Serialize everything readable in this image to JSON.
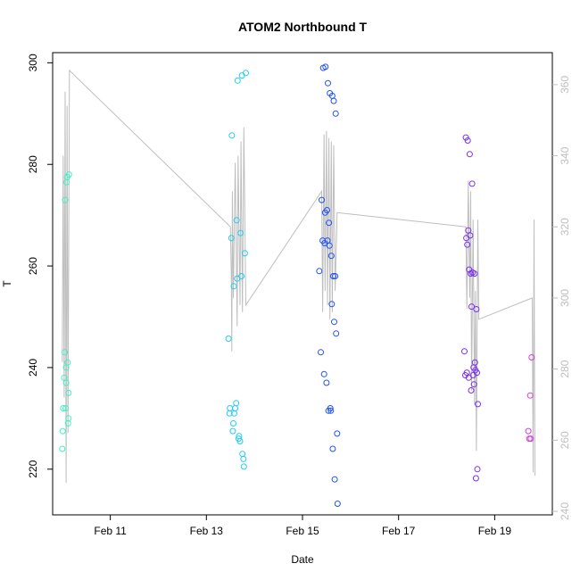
{
  "chart_data": {
    "type": "scatter",
    "title": "ATOM2 Northbound T",
    "xlabel": "Date",
    "ylabel": "T",
    "x_ticks": [
      "Feb 11",
      "Feb 13",
      "Feb 15",
      "Feb 17",
      "Feb 19"
    ],
    "x_tick_values": [
      11,
      13,
      15,
      17,
      19
    ],
    "xlim": [
      9.8,
      20.2
    ],
    "y_ticks": [
      220,
      240,
      260,
      280,
      300
    ],
    "ylim": [
      211,
      302
    ],
    "y2_ticks": [
      260,
      280,
      300,
      320,
      340,
      360
    ],
    "y2_low_tick": 240,
    "y2lim": [
      239,
      369
    ],
    "grid": false,
    "colors": {
      "axis": "#000000",
      "right_axis": "#bebebe",
      "line": "#bebebe"
    },
    "series": [
      {
        "color": "#3ef2c6",
        "points": [
          [
            10.0,
            224
          ],
          [
            10.01,
            227.5
          ],
          [
            10.02,
            232
          ],
          [
            10.04,
            238
          ],
          [
            10.05,
            243
          ],
          [
            10.06,
            273
          ],
          [
            10.07,
            232
          ],
          [
            10.08,
            237
          ],
          [
            10.08,
            240
          ],
          [
            10.09,
            276.5
          ],
          [
            10.1,
            277.5
          ],
          [
            10.11,
            241
          ],
          [
            10.12,
            229
          ],
          [
            10.13,
            230
          ],
          [
            10.13,
            235
          ],
          [
            10.14,
            278
          ]
        ]
      },
      {
        "color": "#22ccf2",
        "points": [
          [
            13.46,
            245.7
          ],
          [
            13.48,
            231
          ],
          [
            13.49,
            232
          ],
          [
            13.52,
            265.5
          ],
          [
            13.53,
            285.7
          ],
          [
            13.55,
            227.5
          ],
          [
            13.56,
            229
          ],
          [
            13.57,
            256
          ],
          [
            13.58,
            231
          ],
          [
            13.6,
            232
          ],
          [
            13.62,
            233
          ],
          [
            13.63,
            269
          ],
          [
            13.64,
            257.5
          ],
          [
            13.65,
            296.5
          ],
          [
            13.67,
            226
          ],
          [
            13.68,
            226.5
          ],
          [
            13.7,
            225.5
          ],
          [
            13.71,
            266.5
          ],
          [
            13.73,
            258
          ],
          [
            13.74,
            297.5
          ],
          [
            13.75,
            223
          ],
          [
            13.77,
            222
          ],
          [
            13.78,
            220.5
          ],
          [
            13.8,
            262.5
          ],
          [
            13.82,
            298
          ]
        ]
      },
      {
        "color": "#2052f2",
        "points": [
          [
            15.35,
            259
          ],
          [
            15.38,
            243
          ],
          [
            15.4,
            273
          ],
          [
            15.42,
            265
          ],
          [
            15.43,
            299
          ],
          [
            15.45,
            238.7
          ],
          [
            15.46,
            264.5
          ],
          [
            15.47,
            270.5
          ],
          [
            15.48,
            299.2
          ],
          [
            15.5,
            237
          ],
          [
            15.51,
            271
          ],
          [
            15.52,
            265
          ],
          [
            15.53,
            296
          ],
          [
            15.54,
            231.5
          ],
          [
            15.55,
            268.5
          ],
          [
            15.56,
            264
          ],
          [
            15.57,
            294
          ],
          [
            15.58,
            232
          ],
          [
            15.59,
            231.5
          ],
          [
            15.6,
            262
          ],
          [
            15.61,
            252.5
          ],
          [
            15.62,
            293.5
          ],
          [
            15.63,
            224
          ],
          [
            15.64,
            258
          ],
          [
            15.65,
            292.5
          ],
          [
            15.66,
            249
          ],
          [
            15.67,
            218
          ],
          [
            15.68,
            258
          ],
          [
            15.69,
            290
          ],
          [
            15.7,
            246.7
          ],
          [
            15.72,
            227
          ],
          [
            15.73,
            213.2
          ]
        ]
      },
      {
        "color": "#7a32ec",
        "points": [
          [
            18.37,
            243.2
          ],
          [
            18.39,
            238.5
          ],
          [
            18.4,
            285.3
          ],
          [
            18.41,
            265.5
          ],
          [
            18.42,
            239
          ],
          [
            18.43,
            264.2
          ],
          [
            18.44,
            284.7
          ],
          [
            18.45,
            267
          ],
          [
            18.46,
            238
          ],
          [
            18.47,
            259.3
          ],
          [
            18.48,
            282
          ],
          [
            18.49,
            266
          ],
          [
            18.5,
            258.5
          ],
          [
            18.51,
            235.5
          ],
          [
            18.52,
            252
          ],
          [
            18.53,
            276.2
          ],
          [
            18.54,
            258.7
          ],
          [
            18.55,
            238.5
          ],
          [
            18.56,
            240
          ],
          [
            18.57,
            236.7
          ],
          [
            18.58,
            258.5
          ],
          [
            18.59,
            241
          ],
          [
            18.6,
            239.5
          ],
          [
            18.61,
            218.2
          ],
          [
            18.62,
            251.5
          ],
          [
            18.63,
            239
          ],
          [
            18.64,
            220
          ],
          [
            18.65,
            232.8
          ]
        ]
      },
      {
        "color": "#d13ed8",
        "points": [
          [
            19.7,
            227.5
          ],
          [
            19.72,
            226
          ],
          [
            19.74,
            234.5
          ],
          [
            19.75,
            226
          ],
          [
            19.77,
            242
          ]
        ]
      }
    ],
    "line": {
      "axis": "right",
      "points": [
        [
          10.0,
          282
        ],
        [
          10.02,
          340
        ],
        [
          10.04,
          272
        ],
        [
          10.06,
          358
        ],
        [
          10.08,
          248
        ],
        [
          10.1,
          354
        ],
        [
          10.12,
          262
        ],
        [
          10.15,
          364
        ],
        [
          13.5,
          320
        ],
        [
          13.52,
          305
        ],
        [
          13.53,
          285
        ],
        [
          13.54,
          330
        ],
        [
          13.56,
          300
        ],
        [
          13.6,
          338
        ],
        [
          13.64,
          292
        ],
        [
          13.66,
          340
        ],
        [
          13.7,
          298
        ],
        [
          13.72,
          344
        ],
        [
          13.75,
          296
        ],
        [
          13.78,
          348
        ],
        [
          13.82,
          298
        ],
        [
          15.4,
          330
        ],
        [
          15.42,
          296
        ],
        [
          15.45,
          346
        ],
        [
          15.47,
          302
        ],
        [
          15.5,
          347
        ],
        [
          15.52,
          298
        ],
        [
          15.55,
          345
        ],
        [
          15.57,
          294
        ],
        [
          15.6,
          344
        ],
        [
          15.62,
          296
        ],
        [
          15.65,
          343
        ],
        [
          15.68,
          302
        ],
        [
          15.72,
          324
        ],
        [
          18.4,
          320
        ],
        [
          18.42,
          297
        ],
        [
          18.45,
          333
        ],
        [
          18.48,
          300
        ],
        [
          18.5,
          330
        ],
        [
          18.52,
          274
        ],
        [
          18.55,
          322
        ],
        [
          18.58,
          270
        ],
        [
          18.6,
          302
        ],
        [
          18.62,
          257
        ],
        [
          18.65,
          322
        ],
        [
          18.67,
          294
        ],
        [
          19.78,
          300
        ],
        [
          19.8,
          251
        ],
        [
          19.82,
          322
        ],
        [
          19.83,
          275
        ],
        [
          19.84,
          250
        ]
      ]
    }
  }
}
